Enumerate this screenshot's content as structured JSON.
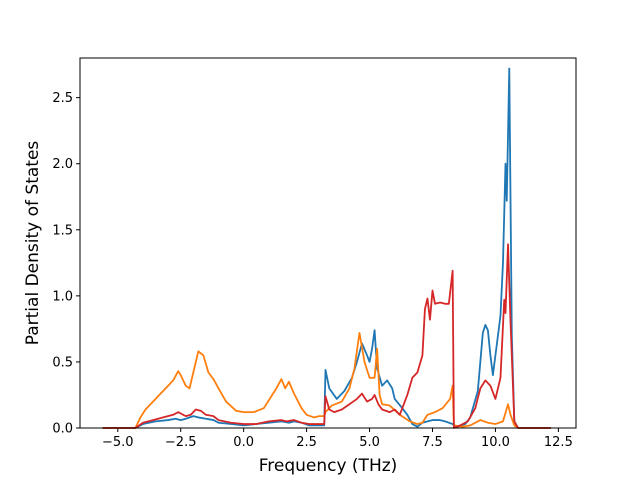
{
  "chart_data": {
    "type": "line",
    "title": "",
    "xlabel": "Frequency (THz)",
    "ylabel": "Partial Density of States",
    "xlim": [
      -6.5,
      13.2
    ],
    "ylim": [
      0,
      2.8
    ],
    "grid": false,
    "x_ticks": [
      -5.0,
      -2.5,
      0.0,
      2.5,
      5.0,
      7.5,
      10.0,
      12.5
    ],
    "x_tick_labels": [
      "−5.0",
      "−2.5",
      "0.0",
      "2.5",
      "5.0",
      "7.5",
      "10.0",
      "12.5"
    ],
    "y_ticks": [
      0.0,
      0.5,
      1.0,
      1.5,
      2.0,
      2.5
    ],
    "y_tick_labels": [
      "0.0",
      "0.5",
      "1.0",
      "1.5",
      "2.0",
      "2.5"
    ],
    "series": [
      {
        "color": "#1f77b4",
        "points": [
          [
            -5.6,
            0.0
          ],
          [
            -4.3,
            0.0
          ],
          [
            -4.0,
            0.03
          ],
          [
            -3.5,
            0.05
          ],
          [
            -3.0,
            0.06
          ],
          [
            -2.7,
            0.07
          ],
          [
            -2.5,
            0.06
          ],
          [
            -2.3,
            0.07
          ],
          [
            -2.0,
            0.09
          ],
          [
            -1.8,
            0.08
          ],
          [
            -1.5,
            0.07
          ],
          [
            -1.2,
            0.06
          ],
          [
            -1.0,
            0.04
          ],
          [
            -0.5,
            0.03
          ],
          [
            0.0,
            0.02
          ],
          [
            0.5,
            0.03
          ],
          [
            1.0,
            0.04
          ],
          [
            1.5,
            0.05
          ],
          [
            1.8,
            0.04
          ],
          [
            2.0,
            0.05
          ],
          [
            2.3,
            0.04
          ],
          [
            2.6,
            0.02
          ],
          [
            3.0,
            0.02
          ],
          [
            3.2,
            0.02
          ],
          [
            3.25,
            0.44
          ],
          [
            3.4,
            0.3
          ],
          [
            3.7,
            0.22
          ],
          [
            4.0,
            0.28
          ],
          [
            4.3,
            0.38
          ],
          [
            4.5,
            0.5
          ],
          [
            4.7,
            0.64
          ],
          [
            4.9,
            0.55
          ],
          [
            5.0,
            0.5
          ],
          [
            5.1,
            0.6
          ],
          [
            5.2,
            0.74
          ],
          [
            5.3,
            0.45
          ],
          [
            5.5,
            0.32
          ],
          [
            5.7,
            0.36
          ],
          [
            5.9,
            0.3
          ],
          [
            6.0,
            0.22
          ],
          [
            6.3,
            0.15
          ],
          [
            6.5,
            0.1
          ],
          [
            6.7,
            0.03
          ],
          [
            6.9,
            0.01
          ],
          [
            7.1,
            0.04
          ],
          [
            7.3,
            0.05
          ],
          [
            7.5,
            0.06
          ],
          [
            7.8,
            0.06
          ],
          [
            8.0,
            0.05
          ],
          [
            8.3,
            0.03
          ],
          [
            8.35,
            0.02
          ],
          [
            8.5,
            0.01
          ],
          [
            8.8,
            0.03
          ],
          [
            9.0,
            0.08
          ],
          [
            9.3,
            0.28
          ],
          [
            9.5,
            0.72
          ],
          [
            9.6,
            0.78
          ],
          [
            9.7,
            0.74
          ],
          [
            9.8,
            0.55
          ],
          [
            9.9,
            0.4
          ],
          [
            10.0,
            0.55
          ],
          [
            10.2,
            0.85
          ],
          [
            10.3,
            1.25
          ],
          [
            10.4,
            2.0
          ],
          [
            10.45,
            1.72
          ],
          [
            10.55,
            2.72
          ],
          [
            10.65,
            0.7
          ],
          [
            10.75,
            0.05
          ],
          [
            10.9,
            0.0
          ],
          [
            12.2,
            0.0
          ]
        ]
      },
      {
        "color": "#ff7f0e",
        "points": [
          [
            -5.6,
            0.0
          ],
          [
            -4.3,
            0.0
          ],
          [
            -4.1,
            0.08
          ],
          [
            -3.9,
            0.14
          ],
          [
            -3.6,
            0.2
          ],
          [
            -3.3,
            0.26
          ],
          [
            -3.0,
            0.32
          ],
          [
            -2.8,
            0.36
          ],
          [
            -2.6,
            0.43
          ],
          [
            -2.5,
            0.4
          ],
          [
            -2.3,
            0.32
          ],
          [
            -2.15,
            0.3
          ],
          [
            -2.0,
            0.42
          ],
          [
            -1.8,
            0.58
          ],
          [
            -1.6,
            0.55
          ],
          [
            -1.4,
            0.42
          ],
          [
            -1.2,
            0.37
          ],
          [
            -1.0,
            0.3
          ],
          [
            -0.7,
            0.2
          ],
          [
            -0.3,
            0.13
          ],
          [
            0.0,
            0.12
          ],
          [
            0.4,
            0.12
          ],
          [
            0.8,
            0.15
          ],
          [
            1.1,
            0.24
          ],
          [
            1.3,
            0.3
          ],
          [
            1.5,
            0.37
          ],
          [
            1.65,
            0.3
          ],
          [
            1.8,
            0.35
          ],
          [
            2.0,
            0.26
          ],
          [
            2.3,
            0.15
          ],
          [
            2.5,
            0.1
          ],
          [
            2.8,
            0.08
          ],
          [
            3.0,
            0.09
          ],
          [
            3.2,
            0.09
          ],
          [
            3.25,
            0.12
          ],
          [
            3.5,
            0.17
          ],
          [
            3.9,
            0.2
          ],
          [
            4.2,
            0.3
          ],
          [
            4.4,
            0.45
          ],
          [
            4.6,
            0.72
          ],
          [
            4.8,
            0.5
          ],
          [
            5.0,
            0.38
          ],
          [
            5.2,
            0.38
          ],
          [
            5.3,
            0.6
          ],
          [
            5.4,
            0.25
          ],
          [
            5.5,
            0.18
          ],
          [
            5.8,
            0.17
          ],
          [
            6.2,
            0.1
          ],
          [
            6.6,
            0.05
          ],
          [
            6.9,
            0.03
          ],
          [
            7.1,
            0.04
          ],
          [
            7.3,
            0.1
          ],
          [
            7.6,
            0.12
          ],
          [
            7.9,
            0.15
          ],
          [
            8.2,
            0.22
          ],
          [
            8.3,
            0.32
          ],
          [
            8.35,
            0.02
          ],
          [
            8.7,
            0.01
          ],
          [
            9.0,
            0.02
          ],
          [
            9.4,
            0.06
          ],
          [
            9.7,
            0.04
          ],
          [
            10.0,
            0.03
          ],
          [
            10.3,
            0.05
          ],
          [
            10.5,
            0.18
          ],
          [
            10.6,
            0.1
          ],
          [
            10.75,
            0.02
          ],
          [
            10.9,
            0.0
          ],
          [
            12.2,
            0.0
          ]
        ]
      },
      {
        "color": "#d62728",
        "points": [
          [
            -5.6,
            0.0
          ],
          [
            -4.3,
            0.0
          ],
          [
            -4.0,
            0.04
          ],
          [
            -3.6,
            0.06
          ],
          [
            -3.2,
            0.08
          ],
          [
            -2.8,
            0.1
          ],
          [
            -2.6,
            0.12
          ],
          [
            -2.3,
            0.09
          ],
          [
            -2.1,
            0.1
          ],
          [
            -1.9,
            0.14
          ],
          [
            -1.7,
            0.13
          ],
          [
            -1.5,
            0.1
          ],
          [
            -1.2,
            0.09
          ],
          [
            -1.0,
            0.06
          ],
          [
            -0.5,
            0.04
          ],
          [
            0.0,
            0.03
          ],
          [
            0.5,
            0.03
          ],
          [
            1.0,
            0.05
          ],
          [
            1.5,
            0.06
          ],
          [
            1.7,
            0.05
          ],
          [
            2.0,
            0.06
          ],
          [
            2.3,
            0.04
          ],
          [
            2.6,
            0.03
          ],
          [
            3.0,
            0.03
          ],
          [
            3.2,
            0.03
          ],
          [
            3.25,
            0.24
          ],
          [
            3.4,
            0.14
          ],
          [
            3.6,
            0.12
          ],
          [
            3.9,
            0.14
          ],
          [
            4.2,
            0.18
          ],
          [
            4.5,
            0.22
          ],
          [
            4.7,
            0.26
          ],
          [
            4.9,
            0.2
          ],
          [
            5.1,
            0.22
          ],
          [
            5.2,
            0.25
          ],
          [
            5.35,
            0.18
          ],
          [
            5.5,
            0.14
          ],
          [
            5.8,
            0.12
          ],
          [
            6.0,
            0.14
          ],
          [
            6.2,
            0.1
          ],
          [
            6.5,
            0.25
          ],
          [
            6.7,
            0.38
          ],
          [
            6.9,
            0.42
          ],
          [
            7.1,
            0.55
          ],
          [
            7.2,
            0.9
          ],
          [
            7.3,
            0.98
          ],
          [
            7.4,
            0.82
          ],
          [
            7.5,
            1.04
          ],
          [
            7.6,
            0.94
          ],
          [
            7.8,
            0.95
          ],
          [
            8.0,
            0.94
          ],
          [
            8.15,
            0.94
          ],
          [
            8.3,
            1.19
          ],
          [
            8.35,
            0.0
          ],
          [
            8.6,
            0.02
          ],
          [
            8.9,
            0.05
          ],
          [
            9.2,
            0.15
          ],
          [
            9.4,
            0.3
          ],
          [
            9.6,
            0.36
          ],
          [
            9.8,
            0.32
          ],
          [
            10.0,
            0.22
          ],
          [
            10.2,
            0.38
          ],
          [
            10.35,
            0.97
          ],
          [
            10.4,
            0.87
          ],
          [
            10.5,
            1.39
          ],
          [
            10.6,
            0.8
          ],
          [
            10.75,
            0.05
          ],
          [
            10.9,
            0.0
          ],
          [
            12.2,
            0.0
          ]
        ]
      }
    ]
  }
}
